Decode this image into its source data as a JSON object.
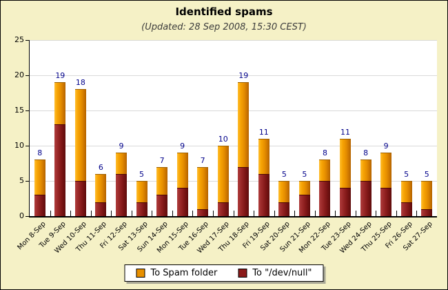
{
  "title": "Identified spams",
  "subtitle": "(Updated: 28 Sep 2008, 15:30 CEST)",
  "colors": {
    "background": "#F5F1C6",
    "plot_background": "#FFFFFF",
    "grid": "#D9D9D9",
    "value_label": "#00008A",
    "spam_orange": "#E89000",
    "devnull_red": "#8B1A1A"
  },
  "legend": [
    {
      "label": "To Spam folder",
      "swatch": "spam"
    },
    {
      "label": "To \"/dev/null\"",
      "swatch": "devnull"
    }
  ],
  "chart_data": {
    "type": "bar",
    "stacked": true,
    "title": "Identified spams",
    "subtitle": "(Updated: 28 Sep 2008, 15:30 CEST)",
    "categories": [
      "Mon 8-Sep",
      "Tue 9-Sep",
      "Wed 10-Sep",
      "Thu 11-Sep",
      "Fri 12-Sep",
      "Sat 13-Sep",
      "Sun 14-Sep",
      "Mon 15-Sep",
      "Tue 16-Sep",
      "Wed 17-Sep",
      "Thu 18-Sep",
      "Fri 19-Sep",
      "Sat 20-Sep",
      "Sun 21-Sep",
      "Mon 22-Sep",
      "Tue 23-Sep",
      "Wed 24-Sep",
      "Thu 25-Sep",
      "Fri 26-Sep",
      "Sat 27-Sep"
    ],
    "series": [
      {
        "name": "To \"/dev/null\"",
        "color": "#8B1A1A",
        "values": [
          3,
          13,
          5,
          2,
          6,
          2,
          3,
          4,
          1,
          2,
          7,
          6,
          2,
          3,
          5,
          4,
          5,
          4,
          2,
          1
        ]
      },
      {
        "name": "To Spam folder",
        "color": "#E89000",
        "values": [
          5,
          6,
          13,
          4,
          3,
          3,
          4,
          5,
          6,
          8,
          12,
          5,
          3,
          2,
          3,
          7,
          3,
          5,
          3,
          4
        ]
      }
    ],
    "totals": [
      8,
      19,
      18,
      6,
      9,
      5,
      7,
      9,
      7,
      10,
      19,
      11,
      5,
      5,
      8,
      11,
      8,
      9,
      5,
      5
    ],
    "xlabel": "",
    "ylabel": "",
    "ylim": [
      0,
      25
    ],
    "yticks": [
      0,
      5,
      10,
      15,
      20,
      25
    ],
    "grid": true,
    "legend_position": "bottom"
  }
}
